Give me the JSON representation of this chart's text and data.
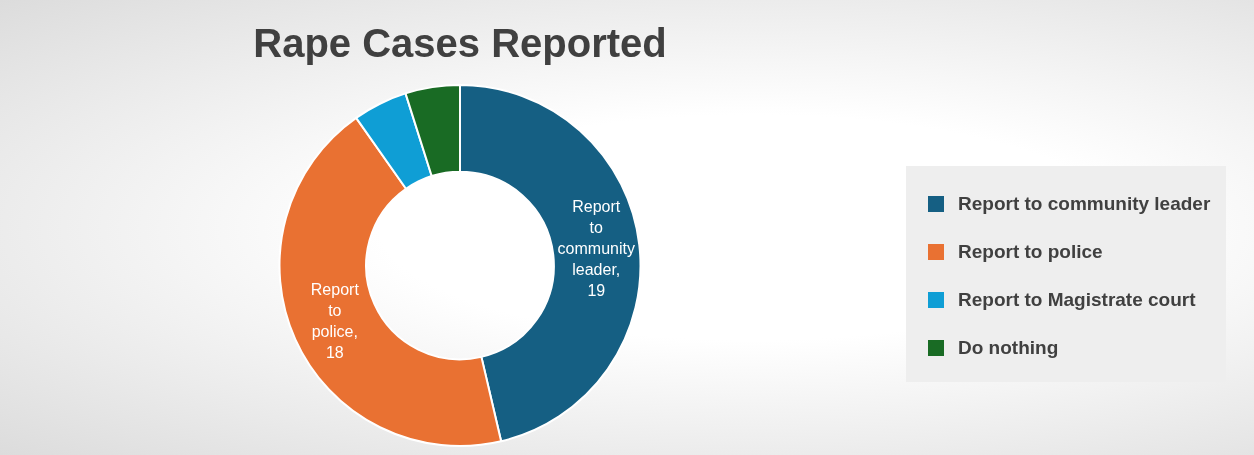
{
  "chart_data": {
    "type": "donut",
    "title": "Rape Cases Reported",
    "categories": [
      "Report to community leader",
      "Report to police",
      "Report to Magistrate court",
      "Do nothing"
    ],
    "values": [
      19,
      18,
      2,
      2
    ],
    "colors": [
      "#155f83",
      "#e97132",
      "#0f9ed5",
      "#196b24"
    ],
    "value_labels": [
      "Report to community leader, 19",
      "Report to police, 18",
      null,
      null
    ],
    "legend": "right"
  }
}
